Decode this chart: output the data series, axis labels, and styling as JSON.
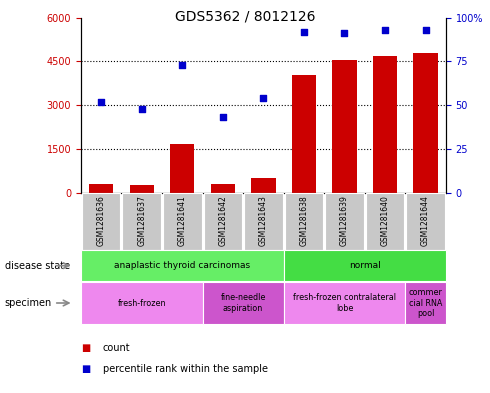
{
  "title": "GDS5362 / 8012126",
  "samples": [
    "GSM1281636",
    "GSM1281637",
    "GSM1281641",
    "GSM1281642",
    "GSM1281643",
    "GSM1281638",
    "GSM1281639",
    "GSM1281640",
    "GSM1281644"
  ],
  "count_values": [
    300,
    270,
    1650,
    280,
    500,
    4050,
    4550,
    4700,
    4800
  ],
  "percentile_values": [
    52,
    48,
    73,
    43,
    54,
    92,
    91,
    93,
    93
  ],
  "left_ylim": [
    0,
    6000
  ],
  "right_ylim": [
    0,
    100
  ],
  "left_yticks": [
    0,
    1500,
    3000,
    4500,
    6000
  ],
  "right_yticks": [
    0,
    25,
    50,
    75,
    100
  ],
  "bar_color": "#cc0000",
  "dot_color": "#0000cc",
  "disease_state_groups": [
    {
      "label": "anaplastic thyroid carcinomas",
      "start": 0,
      "end": 5,
      "color": "#66ee66"
    },
    {
      "label": "normal",
      "start": 5,
      "end": 9,
      "color": "#44dd44"
    }
  ],
  "specimen_groups": [
    {
      "label": "fresh-frozen",
      "start": 0,
      "end": 3,
      "color": "#ee88ee"
    },
    {
      "label": "fine-needle\naspiration",
      "start": 3,
      "end": 5,
      "color": "#cc55cc"
    },
    {
      "label": "fresh-frozen contralateral\nlobe",
      "start": 5,
      "end": 8,
      "color": "#ee88ee"
    },
    {
      "label": "commer\ncial RNA\npool",
      "start": 8,
      "end": 9,
      "color": "#cc55cc"
    }
  ],
  "legend_count_color": "#cc0000",
  "legend_percentile_color": "#0000cc",
  "disease_state_label": "disease state",
  "specimen_label": "specimen",
  "bg_color": "#ffffff",
  "tick_label_color_left": "#cc0000",
  "tick_label_color_right": "#0000cc",
  "plot_bg": "#ffffff",
  "xtick_bg": "#c8c8c8"
}
